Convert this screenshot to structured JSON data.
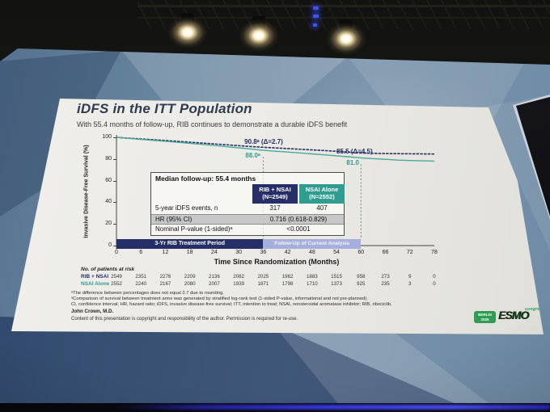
{
  "colors": {
    "navy": "#262e68",
    "teal": "#2f9d8f",
    "periwinkle": "#a6aedd",
    "shaded_row": "#c7c7c7",
    "logo_green": "#2f9c52",
    "title_text": "#2e3c4f"
  },
  "slide": {
    "title": "iDFS in the ITT Population",
    "subtitle": "With 55.4 months of follow-up, RIB continues to demonstrate a durable iDFS benefit",
    "median_followup_label": "Median follow-up: 55.4 months",
    "table": {
      "columns": [
        {
          "label": "RIB + NSAI",
          "sub": "(N=2549)"
        },
        {
          "label": "NSAI Alone",
          "sub": "(N=2552)"
        }
      ],
      "rows": [
        {
          "label": "5-year iDFS events, n",
          "values": [
            "317",
            "407"
          ]
        },
        {
          "label": "HR (95% CI)",
          "span_value": "0.716 (0.618-0.829)"
        },
        {
          "label": "Nominal P-value (1-sided)ᵃ",
          "span_value": "<0.0001"
        }
      ]
    },
    "period_bars": [
      {
        "label": "3-Yr RIB Treatment Period",
        "color": "#262e68",
        "text_color": "#ffffff",
        "font_px": 7,
        "month_start": 0,
        "month_end": 36
      },
      {
        "label": "Follow-Up of Current Analysis",
        "color": "#a6aedd",
        "text_color": "#f4f4fb",
        "font_px": 6.5,
        "month_start": 36,
        "month_end": 60
      }
    ],
    "at_risk": {
      "heading": "No. of patients at risk",
      "rows": [
        {
          "label": "RIB + NSAI",
          "color": "#262e68",
          "values": [
            2549,
            2351,
            2276,
            2209,
            2136,
            2082,
            2025,
            1962,
            1883,
            1515,
            958,
            273,
            9,
            0
          ]
        },
        {
          "label": "NSAI Alone",
          "color": "#2f9d8f",
          "values": [
            2552,
            2240,
            2167,
            2080,
            2007,
            1939,
            1871,
            1798,
            1710,
            1373,
            925,
            235,
            3,
            0
          ]
        }
      ]
    },
    "footnotes": [
      "ᵃThe difference between percentages does not equal 2.7 due to rounding.",
      "ᵃComparison of survival between treatment arms was generated by stratified log-rank test (1-sided P-value, informational and not pre-planned).",
      "CI, confidence interval; HR, hazard ratio; iDFS, invasive disease-free survival; ITT, intention to treat; NSAI, nonsteroidal aromatase inhibitor; RIB, ribociclib."
    ],
    "author": "John Crown, M.D.",
    "copyright": "Content of this presentation is copyright and responsibility of the author. Permission is required for re-use.",
    "logo": {
      "event_line1": "BERLIN",
      "event_line2": "2025",
      "brand": "ESMO",
      "suffix": "congress"
    }
  },
  "chart_data": {
    "type": "line",
    "title": "iDFS in the ITT Population",
    "xlabel": "Time Since Randomization (Months)",
    "ylabel": "Invasive Disease-Free Survival (%)",
    "xlim": [
      0,
      78
    ],
    "ylim": [
      0,
      100
    ],
    "x_ticks": [
      0,
      6,
      12,
      18,
      24,
      30,
      36,
      42,
      48,
      54,
      60,
      66,
      72,
      78
    ],
    "y_ticks": [
      0,
      20,
      40,
      60,
      80,
      100
    ],
    "grid": false,
    "legend_position": "none",
    "series": [
      {
        "name": "RIB + NSAI",
        "n": 2549,
        "color": "#2a3168",
        "dash": "3.5 1.2",
        "x": [
          0,
          3,
          6,
          9,
          12,
          15,
          18,
          21,
          24,
          27,
          30,
          33,
          36,
          39,
          42,
          45,
          48,
          51,
          54,
          57,
          60,
          63,
          66,
          69,
          72,
          75,
          78
        ],
        "y": [
          100,
          99.2,
          98.5,
          97.8,
          97.1,
          96.3,
          95.5,
          94.7,
          93.9,
          93.1,
          92.3,
          91.5,
          90.8,
          90.2,
          89.6,
          89.0,
          88.4,
          87.8,
          87.1,
          86.3,
          85.5,
          85.2,
          85.0,
          84.9,
          84.8,
          84.7,
          84.6
        ]
      },
      {
        "name": "NSAI Alone",
        "n": 2552,
        "color": "#4aa89a",
        "dash": "",
        "x": [
          0,
          3,
          6,
          9,
          12,
          15,
          18,
          21,
          24,
          27,
          30,
          33,
          36,
          39,
          42,
          45,
          48,
          51,
          54,
          57,
          60,
          63,
          66,
          69,
          72,
          75,
          78
        ],
        "y": [
          100,
          99.0,
          98.1,
          97.2,
          96.3,
          95.4,
          94.5,
          93.5,
          92.5,
          91.4,
          90.3,
          89.2,
          88.0,
          87.2,
          86.4,
          85.6,
          84.7,
          83.8,
          82.9,
          82.0,
          81.0,
          80.3,
          79.7,
          79.0,
          78.6,
          78.3,
          78.0
        ]
      }
    ],
    "landmarks": [
      {
        "month": 36,
        "rib_nsai_pct": 90.8,
        "nsai_alone_pct": 88.0,
        "delta": 2.7
      },
      {
        "month": 60,
        "rib_nsai_pct": 85.5,
        "nsai_alone_pct": 81.0,
        "delta": 4.5
      }
    ],
    "annotations": [
      {
        "text": "90.8ᵃ (Δ=2.7)",
        "series": "RIB + NSAI",
        "month": 36
      },
      {
        "text": "88.0ᵃ",
        "series": "NSAI Alone",
        "month": 36
      },
      {
        "text": "85.5 (Δ=4.5)",
        "series": "RIB + NSAI",
        "month": 60
      },
      {
        "text": "81.0",
        "series": "NSAI Alone",
        "month": 60
      }
    ]
  }
}
